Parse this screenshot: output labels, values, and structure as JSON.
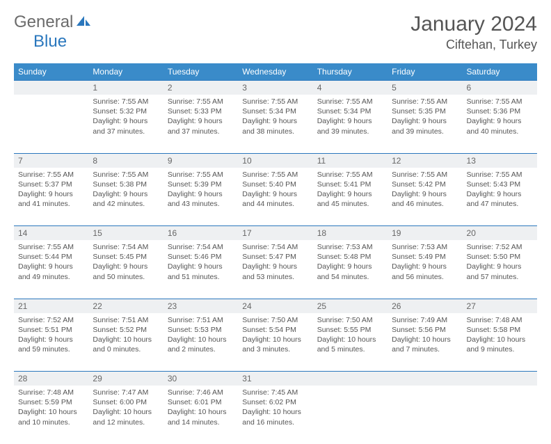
{
  "brand": {
    "gray": "General",
    "blue": "Blue"
  },
  "title": "January 2024",
  "location": "Ciftehan, Turkey",
  "colors": {
    "header_bg": "#3a8bc9",
    "rule": "#2a77bd",
    "daynum_bg": "#eef0f2",
    "text": "#555555"
  },
  "dow": [
    "Sunday",
    "Monday",
    "Tuesday",
    "Wednesday",
    "Thursday",
    "Friday",
    "Saturday"
  ],
  "weeks": [
    [
      null,
      {
        "n": "1",
        "sr": "Sunrise: 7:55 AM",
        "ss": "Sunset: 5:32 PM",
        "d1": "Daylight: 9 hours",
        "d2": "and 37 minutes."
      },
      {
        "n": "2",
        "sr": "Sunrise: 7:55 AM",
        "ss": "Sunset: 5:33 PM",
        "d1": "Daylight: 9 hours",
        "d2": "and 37 minutes."
      },
      {
        "n": "3",
        "sr": "Sunrise: 7:55 AM",
        "ss": "Sunset: 5:34 PM",
        "d1": "Daylight: 9 hours",
        "d2": "and 38 minutes."
      },
      {
        "n": "4",
        "sr": "Sunrise: 7:55 AM",
        "ss": "Sunset: 5:34 PM",
        "d1": "Daylight: 9 hours",
        "d2": "and 39 minutes."
      },
      {
        "n": "5",
        "sr": "Sunrise: 7:55 AM",
        "ss": "Sunset: 5:35 PM",
        "d1": "Daylight: 9 hours",
        "d2": "and 39 minutes."
      },
      {
        "n": "6",
        "sr": "Sunrise: 7:55 AM",
        "ss": "Sunset: 5:36 PM",
        "d1": "Daylight: 9 hours",
        "d2": "and 40 minutes."
      }
    ],
    [
      {
        "n": "7",
        "sr": "Sunrise: 7:55 AM",
        "ss": "Sunset: 5:37 PM",
        "d1": "Daylight: 9 hours",
        "d2": "and 41 minutes."
      },
      {
        "n": "8",
        "sr": "Sunrise: 7:55 AM",
        "ss": "Sunset: 5:38 PM",
        "d1": "Daylight: 9 hours",
        "d2": "and 42 minutes."
      },
      {
        "n": "9",
        "sr": "Sunrise: 7:55 AM",
        "ss": "Sunset: 5:39 PM",
        "d1": "Daylight: 9 hours",
        "d2": "and 43 minutes."
      },
      {
        "n": "10",
        "sr": "Sunrise: 7:55 AM",
        "ss": "Sunset: 5:40 PM",
        "d1": "Daylight: 9 hours",
        "d2": "and 44 minutes."
      },
      {
        "n": "11",
        "sr": "Sunrise: 7:55 AM",
        "ss": "Sunset: 5:41 PM",
        "d1": "Daylight: 9 hours",
        "d2": "and 45 minutes."
      },
      {
        "n": "12",
        "sr": "Sunrise: 7:55 AM",
        "ss": "Sunset: 5:42 PM",
        "d1": "Daylight: 9 hours",
        "d2": "and 46 minutes."
      },
      {
        "n": "13",
        "sr": "Sunrise: 7:55 AM",
        "ss": "Sunset: 5:43 PM",
        "d1": "Daylight: 9 hours",
        "d2": "and 47 minutes."
      }
    ],
    [
      {
        "n": "14",
        "sr": "Sunrise: 7:55 AM",
        "ss": "Sunset: 5:44 PM",
        "d1": "Daylight: 9 hours",
        "d2": "and 49 minutes."
      },
      {
        "n": "15",
        "sr": "Sunrise: 7:54 AM",
        "ss": "Sunset: 5:45 PM",
        "d1": "Daylight: 9 hours",
        "d2": "and 50 minutes."
      },
      {
        "n": "16",
        "sr": "Sunrise: 7:54 AM",
        "ss": "Sunset: 5:46 PM",
        "d1": "Daylight: 9 hours",
        "d2": "and 51 minutes."
      },
      {
        "n": "17",
        "sr": "Sunrise: 7:54 AM",
        "ss": "Sunset: 5:47 PM",
        "d1": "Daylight: 9 hours",
        "d2": "and 53 minutes."
      },
      {
        "n": "18",
        "sr": "Sunrise: 7:53 AM",
        "ss": "Sunset: 5:48 PM",
        "d1": "Daylight: 9 hours",
        "d2": "and 54 minutes."
      },
      {
        "n": "19",
        "sr": "Sunrise: 7:53 AM",
        "ss": "Sunset: 5:49 PM",
        "d1": "Daylight: 9 hours",
        "d2": "and 56 minutes."
      },
      {
        "n": "20",
        "sr": "Sunrise: 7:52 AM",
        "ss": "Sunset: 5:50 PM",
        "d1": "Daylight: 9 hours",
        "d2": "and 57 minutes."
      }
    ],
    [
      {
        "n": "21",
        "sr": "Sunrise: 7:52 AM",
        "ss": "Sunset: 5:51 PM",
        "d1": "Daylight: 9 hours",
        "d2": "and 59 minutes."
      },
      {
        "n": "22",
        "sr": "Sunrise: 7:51 AM",
        "ss": "Sunset: 5:52 PM",
        "d1": "Daylight: 10 hours",
        "d2": "and 0 minutes."
      },
      {
        "n": "23",
        "sr": "Sunrise: 7:51 AM",
        "ss": "Sunset: 5:53 PM",
        "d1": "Daylight: 10 hours",
        "d2": "and 2 minutes."
      },
      {
        "n": "24",
        "sr": "Sunrise: 7:50 AM",
        "ss": "Sunset: 5:54 PM",
        "d1": "Daylight: 10 hours",
        "d2": "and 3 minutes."
      },
      {
        "n": "25",
        "sr": "Sunrise: 7:50 AM",
        "ss": "Sunset: 5:55 PM",
        "d1": "Daylight: 10 hours",
        "d2": "and 5 minutes."
      },
      {
        "n": "26",
        "sr": "Sunrise: 7:49 AM",
        "ss": "Sunset: 5:56 PM",
        "d1": "Daylight: 10 hours",
        "d2": "and 7 minutes."
      },
      {
        "n": "27",
        "sr": "Sunrise: 7:48 AM",
        "ss": "Sunset: 5:58 PM",
        "d1": "Daylight: 10 hours",
        "d2": "and 9 minutes."
      }
    ],
    [
      {
        "n": "28",
        "sr": "Sunrise: 7:48 AM",
        "ss": "Sunset: 5:59 PM",
        "d1": "Daylight: 10 hours",
        "d2": "and 10 minutes."
      },
      {
        "n": "29",
        "sr": "Sunrise: 7:47 AM",
        "ss": "Sunset: 6:00 PM",
        "d1": "Daylight: 10 hours",
        "d2": "and 12 minutes."
      },
      {
        "n": "30",
        "sr": "Sunrise: 7:46 AM",
        "ss": "Sunset: 6:01 PM",
        "d1": "Daylight: 10 hours",
        "d2": "and 14 minutes."
      },
      {
        "n": "31",
        "sr": "Sunrise: 7:45 AM",
        "ss": "Sunset: 6:02 PM",
        "d1": "Daylight: 10 hours",
        "d2": "and 16 minutes."
      },
      null,
      null,
      null
    ]
  ]
}
